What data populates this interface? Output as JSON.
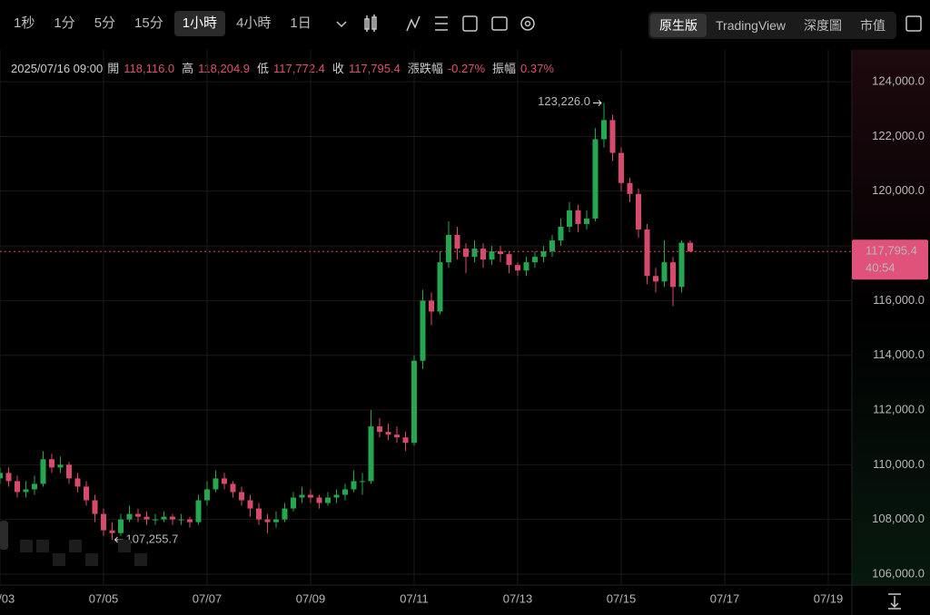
{
  "toolbar": {
    "intervals": [
      "1秒",
      "1分",
      "5分",
      "15分",
      "1小時",
      "4小時",
      "1日"
    ],
    "views": [
      "原生版",
      "TradingView",
      "深度圖",
      "市值"
    ]
  },
  "info_bar": {
    "datetime": "2025/07/16 09:00",
    "items": [
      {
        "label": "開",
        "value": "118,116.0"
      },
      {
        "label": "高",
        "value": "118,204.9"
      },
      {
        "label": "低",
        "value": "117,772.4"
      },
      {
        "label": "收",
        "value": "117,795.4"
      },
      {
        "label": "漲跌幅",
        "value": "-0.27%"
      },
      {
        "label": "振幅",
        "value": "0.37%"
      }
    ]
  },
  "chart_data": {
    "type": "candlestick",
    "up_color": "#25a750",
    "down_color": "#d84a6b",
    "grid": true,
    "ylim": [
      105600,
      125000
    ],
    "yticks": [
      {
        "value": 106000,
        "label": "106,000.0"
      },
      {
        "value": 108000,
        "label": "108,000.0"
      },
      {
        "value": 110000,
        "label": "110,000.0"
      },
      {
        "value": 112000,
        "label": "112,000.0"
      },
      {
        "value": 114000,
        "label": "114,000.0"
      },
      {
        "value": 116000,
        "label": "116,000.0"
      },
      {
        "value": 118000,
        "label": "118,000.0"
      },
      {
        "value": 120000,
        "label": "120,000.0"
      },
      {
        "value": 122000,
        "label": "122,000.0"
      },
      {
        "value": 124000,
        "label": "124,000.0"
      }
    ],
    "categories": [
      "07/03",
      null,
      null,
      null,
      null,
      null,
      null,
      null,
      null,
      null,
      null,
      null,
      "07/05",
      null,
      null,
      null,
      null,
      null,
      null,
      null,
      null,
      null,
      null,
      null,
      "07/07",
      null,
      null,
      null,
      null,
      null,
      null,
      null,
      null,
      null,
      null,
      null,
      "07/09",
      null,
      null,
      null,
      null,
      null,
      null,
      null,
      null,
      null,
      null,
      null,
      "07/11",
      null,
      null,
      null,
      null,
      null,
      null,
      null,
      null,
      null,
      null,
      null,
      "07/13",
      null,
      null,
      null,
      null,
      null,
      null,
      null,
      null,
      null,
      null,
      null,
      "07/15",
      null,
      null,
      null,
      null,
      null,
      null,
      null,
      null,
      null,
      null,
      null,
      "07/17",
      null,
      null,
      null,
      null,
      null,
      null,
      null,
      null,
      null,
      null,
      null,
      "07/19",
      null,
      null
    ],
    "open": [
      109500,
      109700,
      109400,
      109000,
      109100,
      109300,
      110200,
      109900,
      110000,
      109500,
      109200,
      108700,
      108200,
      107600,
      107500,
      108000,
      108200,
      108100,
      108000,
      108000,
      108100,
      108000,
      108000,
      107900,
      108700,
      109100,
      109500,
      109300,
      109000,
      108700,
      108400,
      108000,
      107900,
      108000,
      108400,
      108800,
      108900,
      108800,
      108600,
      108800,
      108900,
      109100,
      109400,
      109400,
      111400,
      111200,
      111100,
      111000,
      110800,
      113800,
      116000,
      115600,
      117400,
      118400,
      117900,
      117600,
      117900,
      117500,
      117800,
      117700,
      117300,
      117100,
      117400,
      117600,
      117800,
      118200,
      118700,
      119300,
      118800,
      119000,
      121900,
      122600,
      121400,
      120300,
      119900,
      118600,
      116900,
      116700,
      117400,
      116500,
      118116,
      null,
      null,
      null,
      null,
      null,
      null,
      null,
      null,
      null,
      null,
      null,
      null,
      null,
      null,
      null,
      null,
      null,
      null
    ],
    "high": [
      109900,
      109900,
      109600,
      109400,
      109600,
      110500,
      110400,
      110300,
      110100,
      109700,
      109400,
      108900,
      108400,
      107900,
      108200,
      108500,
      108400,
      108300,
      108200,
      108300,
      108200,
      108200,
      108100,
      108900,
      109400,
      109800,
      109700,
      109400,
      109200,
      108900,
      108600,
      108200,
      108300,
      108600,
      109000,
      109200,
      109100,
      108900,
      109000,
      109100,
      109300,
      109800,
      109700,
      112000,
      111700,
      111500,
      111400,
      111200,
      114000,
      116400,
      116300,
      117800,
      118900,
      118700,
      118100,
      118200,
      118100,
      118000,
      118000,
      117800,
      117400,
      117600,
      117800,
      118000,
      118400,
      119000,
      119600,
      119500,
      119300,
      122300,
      123226.0,
      122800,
      121600,
      120500,
      120100,
      118800,
      117200,
      118200,
      117600,
      118200,
      118204.9,
      null,
      null,
      null,
      null,
      null,
      null,
      null,
      null,
      null,
      null,
      null,
      null,
      null,
      null,
      null,
      null,
      null,
      null
    ],
    "low": [
      109300,
      109200,
      108800,
      108800,
      108900,
      109200,
      109700,
      109700,
      109300,
      109000,
      108500,
      107900,
      107400,
      107255.7,
      107400,
      107900,
      107900,
      107800,
      107800,
      107900,
      107800,
      107800,
      107700,
      107800,
      108500,
      109000,
      109100,
      108800,
      108500,
      108100,
      107800,
      107500,
      107700,
      107900,
      108300,
      108600,
      108600,
      108400,
      108500,
      108600,
      108700,
      109000,
      108900,
      109300,
      111000,
      110900,
      110800,
      110500,
      110700,
      113500,
      115100,
      115500,
      117200,
      117500,
      117000,
      117400,
      117200,
      117300,
      117400,
      117000,
      116900,
      116900,
      117200,
      117400,
      117600,
      118000,
      118500,
      118500,
      118600,
      118900,
      121600,
      121100,
      120000,
      119600,
      118300,
      116600,
      116300,
      116500,
      115800,
      116300,
      117772.4,
      null,
      null,
      null,
      null,
      null,
      null,
      null,
      null,
      null,
      null,
      null,
      null,
      null,
      null,
      null,
      null,
      null,
      null
    ],
    "close": [
      109700,
      109400,
      109000,
      109100,
      109300,
      110200,
      109900,
      110000,
      109500,
      109200,
      108700,
      108200,
      107600,
      107500,
      108000,
      108200,
      108100,
      108000,
      108000,
      108100,
      108000,
      108000,
      107900,
      108700,
      109100,
      109500,
      109300,
      109000,
      108700,
      108400,
      108000,
      107900,
      108000,
      108400,
      108800,
      108900,
      108800,
      108600,
      108800,
      108900,
      109100,
      109400,
      109400,
      111400,
      111200,
      111100,
      111000,
      110800,
      113800,
      116000,
      115600,
      117400,
      118400,
      117900,
      117600,
      117900,
      117500,
      117800,
      117700,
      117300,
      117100,
      117400,
      117600,
      117800,
      118200,
      118700,
      119300,
      118800,
      119000,
      121900,
      122600,
      121400,
      120300,
      119900,
      118600,
      116900,
      116700,
      117400,
      116500,
      118116,
      117795.4,
      null,
      null,
      null,
      null,
      null,
      null,
      null,
      null,
      null,
      null,
      null,
      null,
      null,
      null,
      null,
      null,
      null,
      null
    ],
    "max_label": "123,226.0",
    "min_label": "107,255.7",
    "last_price_label": "117,795.4",
    "countdown": "40:54"
  }
}
